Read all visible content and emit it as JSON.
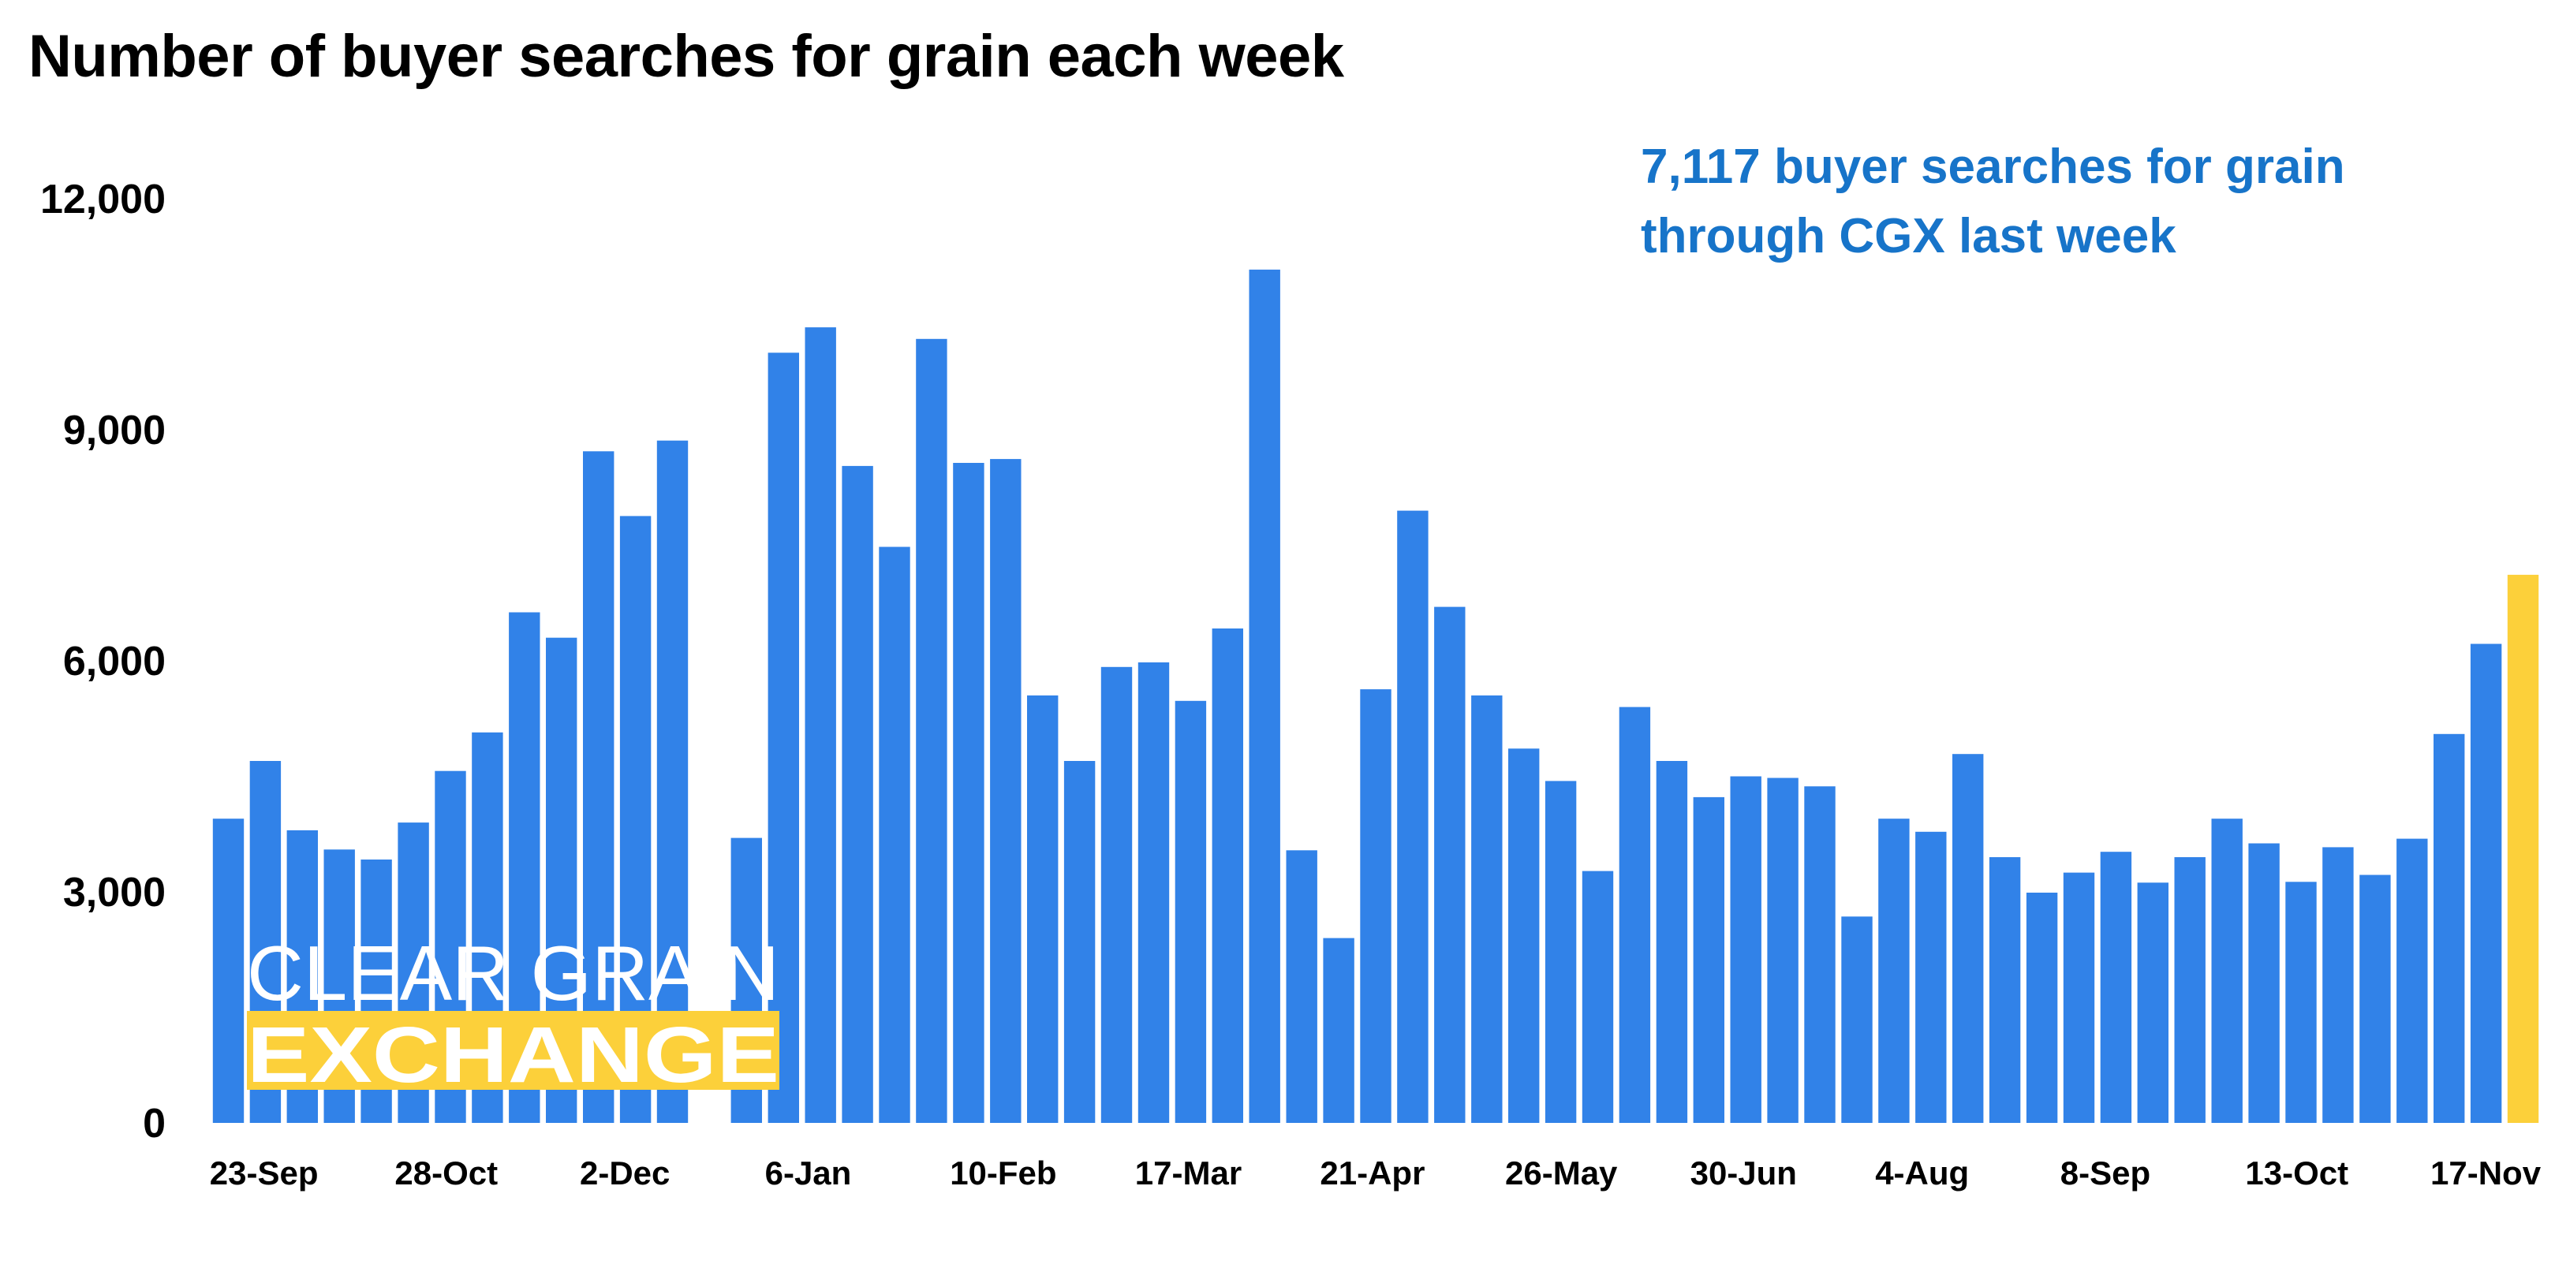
{
  "chart_data": {
    "type": "bar",
    "title": "Number of buyer searches for grain each week",
    "annotation": [
      "7,117 buyer searches for grain",
      "through CGX last week"
    ],
    "xlabel": "",
    "ylabel": "",
    "ylim": [
      0,
      12000
    ],
    "yticks": [
      0,
      3000,
      6000,
      9000,
      12000
    ],
    "ytick_labels": [
      "0",
      "3,000",
      "6,000",
      "9,000",
      "12,000"
    ],
    "grid": false,
    "tick_labels": [
      {
        "label": "23-Sep",
        "index": 0
      },
      {
        "label": "28-Oct",
        "index": 5
      },
      {
        "label": "2-Dec",
        "index": 10
      },
      {
        "label": "6-Jan",
        "index": 15
      },
      {
        "label": "10-Feb",
        "index": 20
      },
      {
        "label": "17-Mar",
        "index": 25
      },
      {
        "label": "21-Apr",
        "index": 30
      },
      {
        "label": "26-May",
        "index": 35
      },
      {
        "label": "30-Jun",
        "index": 40
      },
      {
        "label": "4-Aug",
        "index": 45
      },
      {
        "label": "8-Sep",
        "index": 50
      },
      {
        "label": "13-Oct",
        "index": 55
      },
      {
        "label": "17-Nov",
        "index": 60
      }
    ],
    "values": [
      3950,
      4700,
      3800,
      3550,
      3420,
      3900,
      4570,
      5070,
      6630,
      6300,
      8720,
      7880,
      8860,
      0,
      3700,
      10000,
      10330,
      8530,
      7480,
      10180,
      8570,
      8620,
      5550,
      4700,
      5920,
      5980,
      5480,
      6420,
      11080,
      3540,
      2400,
      5630,
      7950,
      6700,
      5550,
      4860,
      4440,
      3270,
      5400,
      4700,
      4230,
      4500,
      4480,
      4370,
      2680,
      3950,
      3780,
      4790,
      3450,
      2990,
      3250,
      3520,
      3120,
      3450,
      3950,
      3630,
      3130,
      3580,
      3220,
      3690,
      5050,
      6220,
      7117
    ],
    "highlight_index": 62,
    "colors": {
      "bar": "#3182e8",
      "highlight": "#fcd03a",
      "annotation": "#1774c9",
      "logo_text": "#ffffff",
      "logo_band": "#fcd03a"
    }
  },
  "logo": {
    "line1": "CLEAR GRAIN",
    "line2": "EXCHANGE"
  }
}
